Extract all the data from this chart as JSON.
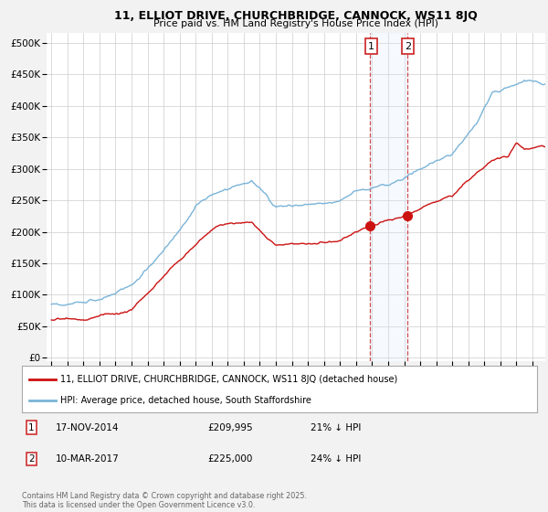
{
  "title_line1": "11, ELLIOT DRIVE, CHURCHBRIDGE, CANNOCK, WS11 8JQ",
  "title_line2": "Price paid vs. HM Land Registry's House Price Index (HPI)",
  "legend_line1": "11, ELLIOT DRIVE, CHURCHBRIDGE, CANNOCK, WS11 8JQ (detached house)",
  "legend_line2": "HPI: Average price, detached house, South Staffordshire",
  "footnote": "Contains HM Land Registry data © Crown copyright and database right 2025.\nThis data is licensed under the Open Government Licence v3.0.",
  "annotation1": {
    "label": "1",
    "date_x": 2014.88,
    "value": 209995,
    "text": "17-NOV-2014",
    "price": "£209,995",
    "hpi_diff": "21% ↓ HPI"
  },
  "annotation2": {
    "label": "2",
    "date_x": 2017.19,
    "value": 225000,
    "text": "10-MAR-2017",
    "price": "£225,000",
    "hpi_diff": "24% ↓ HPI"
  },
  "hpi_color": "#7ab4d8",
  "price_color": "#cc1111",
  "annotation_box_color": "#cc2222",
  "shaded_region_color": "#ddeeff",
  "yticks": [
    0,
    50000,
    100000,
    150000,
    200000,
    250000,
    300000,
    350000,
    400000,
    450000,
    500000
  ],
  "ytick_labels": [
    "£0",
    "£50K",
    "£100K",
    "£150K",
    "£200K",
    "£250K",
    "£300K",
    "£350K",
    "£400K",
    "£450K",
    "£500K"
  ],
  "xlim_start": 1994.7,
  "xlim_end": 2025.8,
  "ylim_min": -5000,
  "ylim_max": 515000,
  "background_color": "#f2f2f2",
  "plot_background": "#ffffff"
}
